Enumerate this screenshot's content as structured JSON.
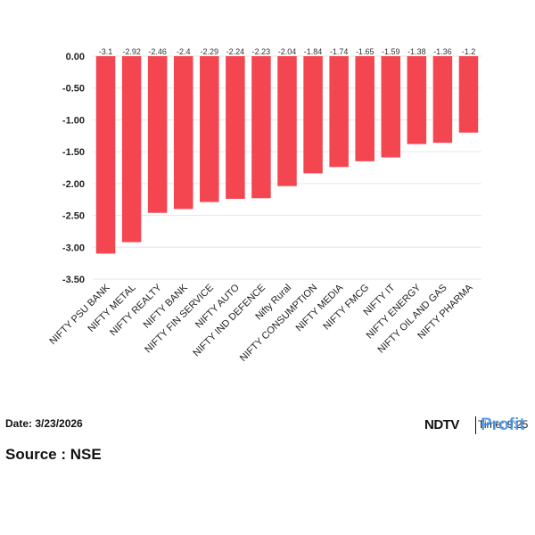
{
  "chart_data": {
    "type": "bar",
    "categories": [
      "NIFTY PSU BANK",
      "NIFTY METAL",
      "NIFTY REALTY",
      "NIFTY BANK",
      "NIFTY FIN SERVICE",
      "NIFTY AUTO",
      "NIFTY IND DEFENCE",
      "Nifty Rural",
      "NIFTY CONSUMPTION",
      "NIFTY MEDIA",
      "NIFTY FMCG",
      "NIFTY IT",
      "NIFTY ENERGY",
      "NIFTY OIL AND GAS",
      "NIFTY PHARMA"
    ],
    "values": [
      -3.1,
      -2.92,
      -2.46,
      -2.4,
      -2.29,
      -2.24,
      -2.23,
      -2.04,
      -1.84,
      -1.74,
      -1.65,
      -1.59,
      -1.38,
      -1.36,
      -1.2
    ],
    "data_labels": [
      "-3.1",
      "-2.92",
      "-2.46",
      "-2.4",
      "-2.29",
      "-2.24",
      "-2.23",
      "-2.04",
      "-1.84",
      "-1.74",
      "-1.65",
      "-1.59",
      "-1.38",
      "-1.36",
      "-1.2"
    ],
    "ylim": [
      -3.5,
      0
    ],
    "yticks": [
      "0.00",
      "-0.50",
      "-1.00",
      "-1.50",
      "-2.00",
      "-2.50",
      "-3.00",
      "-3.50"
    ],
    "ytick_values": [
      0,
      -0.5,
      -1,
      -1.5,
      -2,
      -2.5,
      -3,
      -3.5
    ],
    "grid": true,
    "title": "",
    "xlabel": "",
    "ylabel": "",
    "bar_color": "#f44650"
  },
  "footer": {
    "date": "Date: 3/23/2026",
    "source": "Source : NSE",
    "brand_ndtv": "NDTV",
    "brand_time": "Time: 9:25",
    "brand_profit": "Profit"
  }
}
